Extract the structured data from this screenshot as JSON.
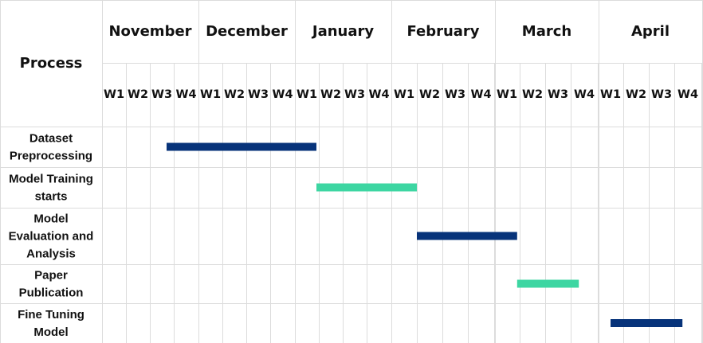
{
  "header": {
    "process": "Process"
  },
  "months": [
    {
      "name": "November",
      "weeks": [
        "W1",
        "W2",
        "W3",
        "W4"
      ]
    },
    {
      "name": "December",
      "weeks": [
        "W1",
        "W2",
        "W3",
        "W4"
      ]
    },
    {
      "name": "January",
      "weeks": [
        "W1",
        "W2",
        "W3",
        "W4"
      ]
    },
    {
      "name": "February",
      "weeks": [
        "W1",
        "W2",
        "W3",
        "W4"
      ]
    },
    {
      "name": "March",
      "weeks": [
        "W1",
        "W2",
        "W3",
        "W4"
      ]
    },
    {
      "name": "April",
      "weeks": [
        "W1",
        "W2",
        "W3",
        "W4"
      ]
    }
  ],
  "tasks": [
    {
      "lines": [
        "Dataset",
        "Preprocessing"
      ],
      "start": 2.7,
      "end": 8.9,
      "color": "#07337a"
    },
    {
      "lines": [
        "Model Training",
        "starts"
      ],
      "start": 8.9,
      "end": 13.0,
      "color": "#3dd6a2"
    },
    {
      "lines": [
        "Model",
        "Evaluation and",
        "Analysis"
      ],
      "start": 13.0,
      "end": 16.9,
      "color": "#07337a"
    },
    {
      "lines": [
        "Paper",
        "Publication"
      ],
      "start": 16.9,
      "end": 19.3,
      "color": "#3dd6a2"
    },
    {
      "lines": [
        "Fine Tuning",
        "Model"
      ],
      "start": 20.5,
      "end": 23.3,
      "color": "#07337a"
    }
  ]
}
